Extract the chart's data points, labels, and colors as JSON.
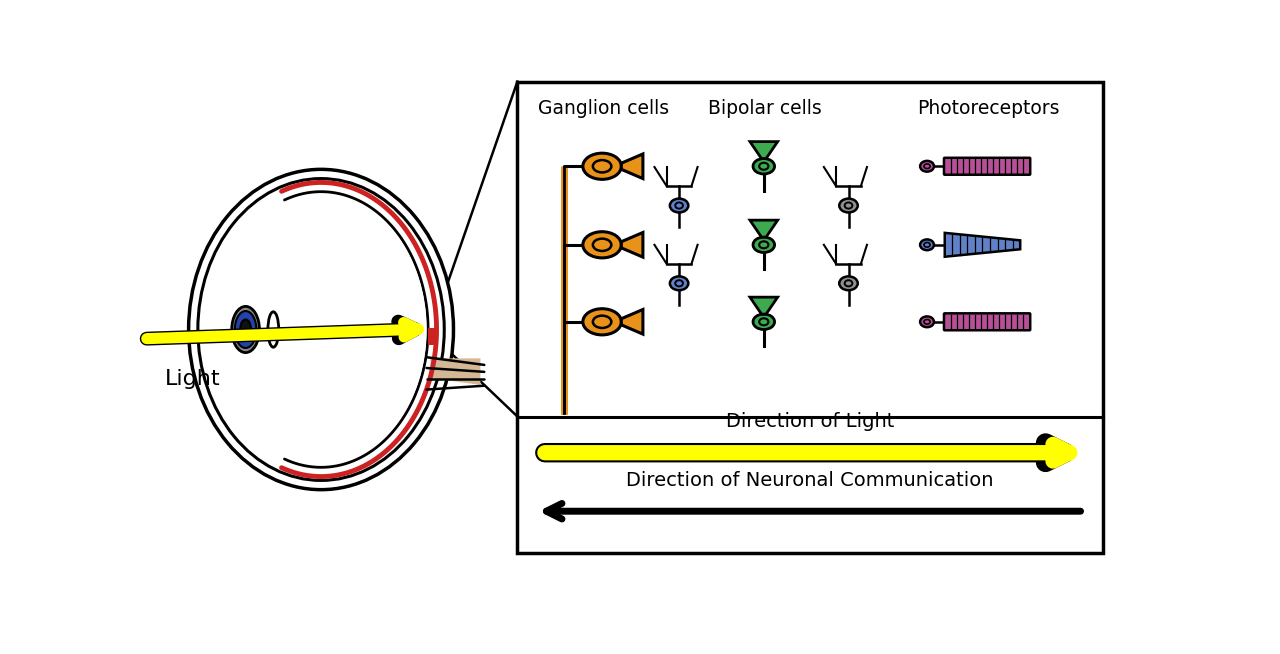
{
  "bg_color": "#ffffff",
  "color_orange": "#E8921A",
  "color_green": "#3DAA50",
  "color_blue_cell": "#6080C8",
  "color_gray_cell": "#909090",
  "color_pink": "#B85098",
  "color_yellow": "#FFFF00",
  "color_red_retina": "#CC2222",
  "color_tan": "#D4B896",
  "color_iris_blue": "#2244AA",
  "label_light": "Light",
  "label_dir_light": "Direction of Light",
  "label_dir_neuro": "Direction of Neuronal Communication",
  "title_ganglion": "Ganglion cells",
  "title_bipolar": "Bipolar cells",
  "title_photoreceptors": "Photoreceptors"
}
